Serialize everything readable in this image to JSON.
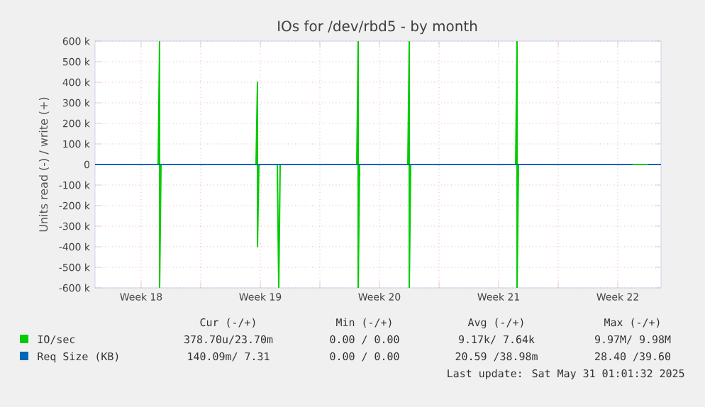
{
  "chart_data": {
    "type": "line",
    "title": "IOs for /dev/rbd5 - by month",
    "ylabel": "Units read (-) / write (+)",
    "xlim": [
      "2025-04-27T19:00",
      "2025-05-31T01:00"
    ],
    "xticks": [
      {
        "value": "2025-04-30T12:00",
        "label": "Week 18"
      },
      {
        "value": "2025-05-04T00:00",
        "label": null
      },
      {
        "value": "2025-05-07T12:00",
        "label": "Week 19"
      },
      {
        "value": "2025-05-11T00:00",
        "label": null
      },
      {
        "value": "2025-05-14T12:00",
        "label": "Week 20"
      },
      {
        "value": "2025-05-18T00:00",
        "label": null
      },
      {
        "value": "2025-05-21T12:00",
        "label": "Week 21"
      },
      {
        "value": "2025-05-25T00:00",
        "label": null
      },
      {
        "value": "2025-05-28T12:00",
        "label": "Week 22"
      }
    ],
    "ylim": [
      -600000,
      600000
    ],
    "yticks": [
      {
        "value": -600000,
        "label": "-600 k"
      },
      {
        "value": -500000,
        "label": "-500 k"
      },
      {
        "value": -400000,
        "label": "-400 k"
      },
      {
        "value": -300000,
        "label": "-300 k"
      },
      {
        "value": -200000,
        "label": "-200 k"
      },
      {
        "value": -100000,
        "label": "-100 k"
      },
      0,
      {
        "value": 100000,
        "label": "100 k"
      },
      {
        "value": 200000,
        "label": "200 k"
      },
      {
        "value": 300000,
        "label": "300 k"
      },
      {
        "value": 400000,
        "label": "400 k"
      },
      {
        "value": 500000,
        "label": "500 k"
      },
      {
        "value": 600000,
        "label": "600 k"
      }
    ],
    "grid": true,
    "legend": "bottom",
    "marker": "none",
    "line_style": "solid",
    "series": [
      {
        "name": "IO/sec",
        "color": "#00cc00",
        "x": [
          "2025-04-27T19:00",
          "2025-05-01T12:00",
          "2025-05-01T14:00",
          "2025-05-01T14:00",
          "2025-05-01T16:00",
          "2025-05-07T06:00",
          "2025-05-07T08:00",
          "2025-05-07T08:00",
          "2025-05-07T10:00",
          "2025-05-08T12:00",
          "2025-05-08T14:00",
          "2025-05-08T16:00",
          "2025-05-13T04:00",
          "2025-05-13T06:00",
          "2025-05-13T06:00",
          "2025-05-13T08:00",
          "2025-05-16T04:00",
          "2025-05-16T06:00",
          "2025-05-16T06:00",
          "2025-05-16T08:00",
          "2025-05-22T12:00",
          "2025-05-22T14:00",
          "2025-05-22T14:00",
          "2025-05-22T16:00",
          "2025-05-31T01:00"
        ],
        "values": [
          0,
          0,
          600000,
          -600000,
          0,
          0,
          400000,
          -400000,
          0,
          0,
          -600000,
          0,
          0,
          600000,
          -600000,
          0,
          0,
          600000,
          -600000,
          0,
          0,
          600000,
          -600000,
          0,
          0
        ]
      },
      {
        "name": "Req Size (KB)",
        "color": "#0066b3",
        "x": [
          "2025-04-27T19:00",
          "2025-05-29T09:00",
          "2025-05-30T00:00",
          "2025-05-30T07:00",
          "2025-05-31T01:00"
        ],
        "values": [
          0,
          0,
          null,
          0,
          0
        ]
      }
    ],
    "annotations": [
      "Cur (-/+)",
      "Min (-/+)",
      "Avg (-/+)",
      "Max (-/+)",
      "378.70u/23.70m",
      "0.00 / 0.00",
      "9.17k/ 7.64k",
      "9.97M/ 9.98M",
      "140.09m/ 7.31",
      "0.00 / 0.00",
      "20.59 /38.98m",
      "28.40 /39.60",
      "Last update: Sat May 31 01:01:32 2025"
    ]
  }
}
